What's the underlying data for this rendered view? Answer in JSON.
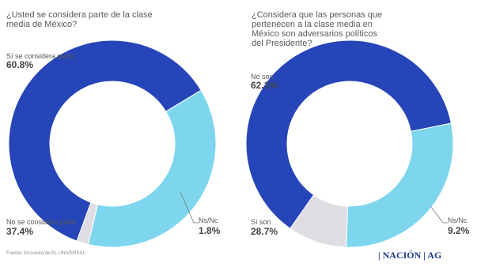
{
  "chart_data": [
    {
      "type": "donut",
      "title": "¿Usted se considera parte de la clase\nmedia de México?",
      "slices": [
        {
          "label": "Sí se considera parte",
          "value": 60.8,
          "display": "60.8%",
          "color": "#2645b8"
        },
        {
          "label": "No se considera parte",
          "value": 37.4,
          "display": "37.4%",
          "color": "#7dd6ee"
        },
        {
          "label": "Ns/Nc",
          "value": 1.8,
          "display": "1.8%",
          "color": "#e0dde2"
        }
      ]
    },
    {
      "type": "donut",
      "title": "¿Considera que las personas que\npertenecen a la clase media en\nMéxico son adversarios políticos\ndel Presidente?",
      "slices": [
        {
          "label": "No son",
          "value": 62.1,
          "display": "62.1%",
          "color": "#2645b8"
        },
        {
          "label": "Sí son",
          "value": 28.7,
          "display": "28.7%",
          "color": "#7dd6ee"
        },
        {
          "label": "Ns/Nc",
          "value": 9.2,
          "display": "9.2%",
          "color": "#e0dde2"
        }
      ]
    }
  ],
  "footer": {
    "source": "Fuente: Encuesta de EL UNIVERSAL",
    "brand": "| NACIÓN | AG"
  }
}
